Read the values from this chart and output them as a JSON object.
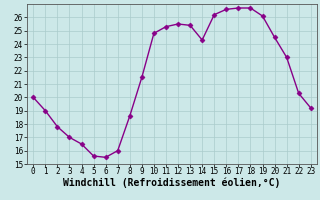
{
  "x": [
    0,
    1,
    2,
    3,
    4,
    5,
    6,
    7,
    8,
    9,
    10,
    11,
    12,
    13,
    14,
    15,
    16,
    17,
    18,
    19,
    20,
    21,
    22,
    23
  ],
  "y": [
    20,
    19,
    17.8,
    17,
    16.5,
    15.6,
    15.5,
    16.0,
    18.6,
    21.5,
    24.8,
    25.3,
    25.5,
    25.4,
    24.3,
    26.2,
    26.6,
    26.7,
    26.7,
    26.1,
    24.5,
    23.0,
    20.3,
    19.2
  ],
  "line_color": "#880088",
  "marker": "D",
  "markersize": 2.5,
  "linewidth": 1.0,
  "xlabel": "Windchill (Refroidissement éolien,°C)",
  "xlabel_fontsize": 7,
  "ylim": [
    15,
    27
  ],
  "xlim": [
    -0.5,
    23.5
  ],
  "yticks": [
    15,
    16,
    17,
    18,
    19,
    20,
    21,
    22,
    23,
    24,
    25,
    26
  ],
  "xticks": [
    0,
    1,
    2,
    3,
    4,
    5,
    6,
    7,
    8,
    9,
    10,
    11,
    12,
    13,
    14,
    15,
    16,
    17,
    18,
    19,
    20,
    21,
    22,
    23
  ],
  "background_color": "#cce8e8",
  "grid_color": "#aacccc",
  "tick_fontsize": 5.5
}
